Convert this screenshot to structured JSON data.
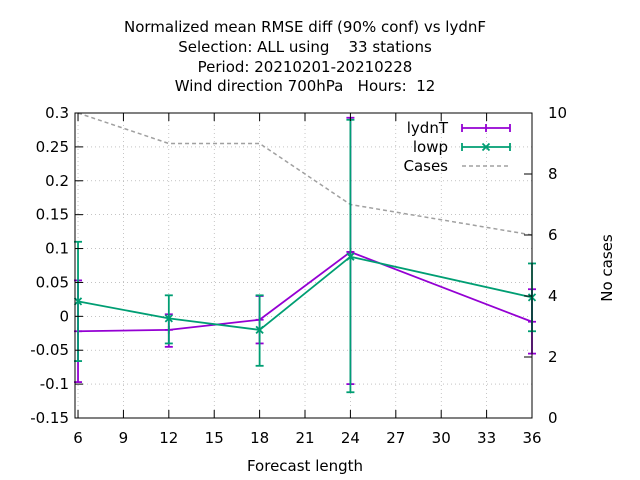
{
  "chart_data": {
    "type": "line",
    "title_lines": [
      "Normalized mean RMSE diff (90% conf) vs lydnF",
      "Selection: ALL using    33 stations",
      "Period: 20210201-20210228",
      "Wind direction 700hPa   Hours:  12"
    ],
    "xlabel": "Forecast length",
    "ylabel": "",
    "y2label": "No cases",
    "xlim": [
      5.8,
      36
    ],
    "ylim": [
      -0.15,
      0.3
    ],
    "y2lim": [
      0,
      10
    ],
    "xticks": [
      6,
      9,
      12,
      15,
      18,
      21,
      24,
      27,
      30,
      33,
      36
    ],
    "yticks": [
      -0.15,
      -0.1,
      -0.05,
      0,
      0.05,
      0.1,
      0.15,
      0.2,
      0.25,
      0.3
    ],
    "y2ticks": [
      0,
      2,
      4,
      6,
      8,
      10
    ],
    "ytick_labels": [
      "-0.15",
      "-0.1",
      "-0.05",
      "0",
      "0.05",
      "0.1",
      "0.15",
      "0.2",
      "0.25",
      "0.3"
    ],
    "xtick_labels": [
      "6",
      "9",
      "12",
      "15",
      "18",
      "21",
      "24",
      "27",
      "30",
      "33",
      "36"
    ],
    "y2tick_labels": [
      "0",
      "2",
      "4",
      "6",
      "8",
      "10"
    ],
    "grid": true,
    "legend_position": "top-right",
    "series": [
      {
        "name": "lydnT",
        "color": "#9400d3",
        "marker": "plus",
        "x": [
          6,
          12,
          18,
          24,
          36
        ],
        "y": [
          -0.022,
          -0.02,
          -0.005,
          0.095,
          -0.008
        ],
        "err_low": [
          -0.097,
          -0.045,
          -0.04,
          -0.1,
          -0.055
        ],
        "err_high": [
          0.053,
          0.003,
          0.03,
          0.293,
          0.04
        ]
      },
      {
        "name": "lowp",
        "color": "#009e73",
        "marker": "cross",
        "x": [
          6,
          12,
          18,
          24,
          36
        ],
        "y": [
          0.022,
          -0.003,
          -0.02,
          0.088,
          0.028
        ],
        "err_low": [
          -0.066,
          -0.04,
          -0.073,
          -0.112,
          -0.022
        ],
        "err_high": [
          0.11,
          0.031,
          0.031,
          0.29,
          0.078
        ]
      }
    ],
    "cases": {
      "name": "Cases",
      "color": "#a0a0a0",
      "x": [
        6,
        12,
        18,
        24,
        36
      ],
      "y": [
        10,
        9,
        9,
        7,
        6
      ]
    }
  }
}
